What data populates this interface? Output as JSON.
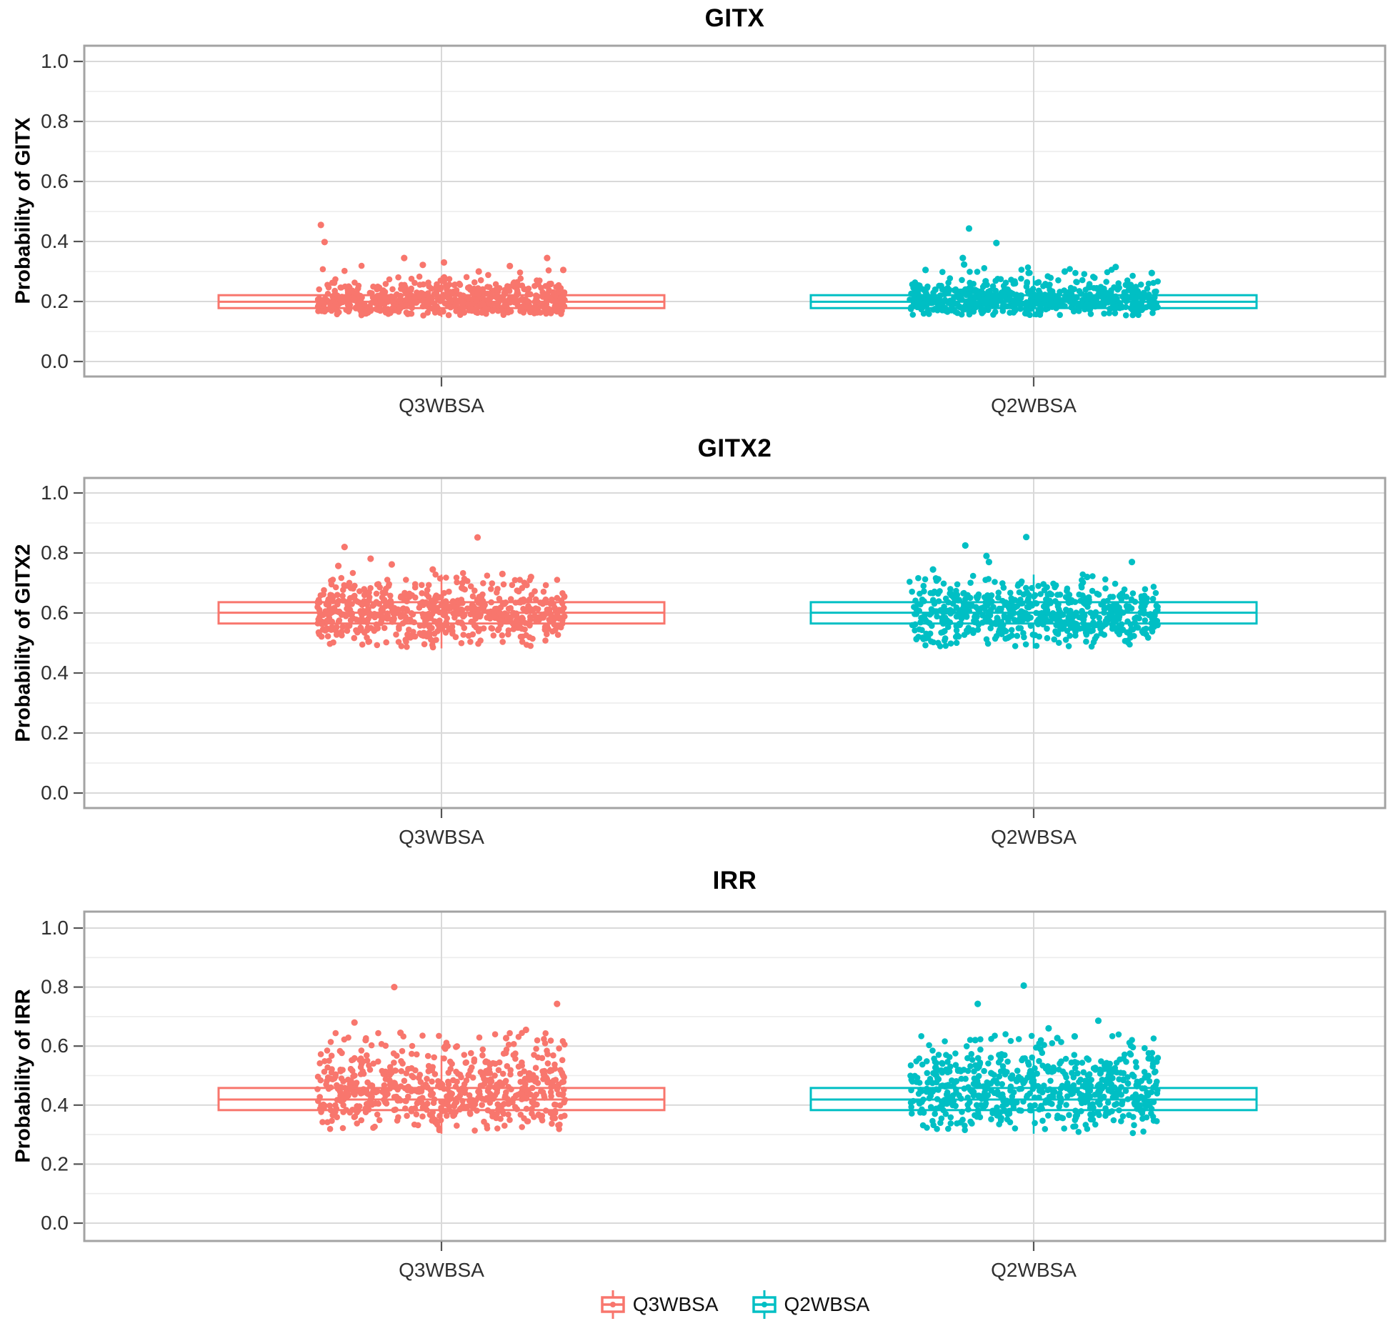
{
  "figure": {
    "panels": [
      {
        "title": "GITX",
        "ylabel": "Probability of GITX"
      },
      {
        "title": "GITX2",
        "ylabel": "Probability of GITX2"
      },
      {
        "title": "IRR",
        "ylabel": "Probability of IRR"
      }
    ],
    "legend": {
      "items": [
        {
          "label": "Q3WBSA",
          "color": "#F8766D"
        },
        {
          "label": "Q2WBSA",
          "color": "#00BFC4"
        }
      ]
    }
  },
  "chart_data": [
    {
      "type": "boxplot-jitter",
      "title": "GITX",
      "xlabel": "",
      "ylabel": "Probability of GITX",
      "categories": [
        "Q3WBSA",
        "Q2WBSA"
      ],
      "ylim": [
        -0.05,
        1.05
      ],
      "yticks": [
        0.0,
        0.2,
        0.4,
        0.6,
        0.8,
        1.0
      ],
      "grid": "major-and-minor-horizontal, major-vertical-at-categories",
      "legend_position": "bottom",
      "series": [
        {
          "name": "Q3WBSA",
          "color": "#F8766D",
          "box": {
            "q1": 0.178,
            "median": 0.199,
            "q3": 0.221,
            "whisker_low": 0.148,
            "whisker_high": 0.285
          },
          "jitter": {
            "n": 620,
            "core_min": 0.15,
            "core_max": 0.285,
            "tail_max": 0.34
          },
          "outliers": [
            [
              -0.97,
              0.455
            ],
            [
              -0.94,
              0.398
            ],
            [
              -0.3,
              0.345
            ],
            [
              0.85,
              0.345
            ],
            [
              0.02,
              0.33
            ],
            [
              -0.15,
              0.322
            ],
            [
              0.55,
              0.318
            ],
            [
              0.98,
              0.305
            ],
            [
              0.3,
              0.3
            ]
          ]
        },
        {
          "name": "Q2WBSA",
          "color": "#00BFC4",
          "box": {
            "q1": 0.178,
            "median": 0.199,
            "q3": 0.221,
            "whisker_low": 0.148,
            "whisker_high": 0.285
          },
          "jitter": {
            "n": 620,
            "core_min": 0.15,
            "core_max": 0.285,
            "tail_max": 0.33
          },
          "outliers": [
            [
              -0.52,
              0.443
            ],
            [
              -0.3,
              0.395
            ],
            [
              -0.57,
              0.345
            ],
            [
              -0.56,
              0.323
            ],
            [
              -0.87,
              0.305
            ],
            [
              0.66,
              0.315
            ],
            [
              0.25,
              0.3
            ],
            [
              0.95,
              0.295
            ]
          ]
        }
      ]
    },
    {
      "type": "boxplot-jitter",
      "title": "GITX2",
      "xlabel": "",
      "ylabel": "Probability of GITX2",
      "categories": [
        "Q3WBSA",
        "Q2WBSA"
      ],
      "ylim": [
        -0.05,
        1.05
      ],
      "yticks": [
        0.0,
        0.2,
        0.4,
        0.6,
        0.8,
        1.0
      ],
      "grid": "major-and-minor-horizontal, major-vertical-at-categories",
      "legend_position": "bottom",
      "series": [
        {
          "name": "Q3WBSA",
          "color": "#F8766D",
          "box": {
            "q1": 0.565,
            "median": 0.601,
            "q3": 0.636,
            "whisker_low": 0.482,
            "whisker_high": 0.728
          },
          "jitter": {
            "n": 620,
            "core_min": 0.483,
            "core_max": 0.723,
            "tail_max": 0.75
          },
          "outliers": [
            [
              0.29,
              0.852
            ],
            [
              -0.78,
              0.82
            ],
            [
              -0.57,
              0.781
            ],
            [
              -0.4,
              0.762
            ],
            [
              -0.83,
              0.757
            ],
            [
              -0.07,
              0.745
            ],
            [
              0.49,
              0.73
            ],
            [
              0.72,
              0.72
            ]
          ]
        },
        {
          "name": "Q2WBSA",
          "color": "#00BFC4",
          "box": {
            "q1": 0.565,
            "median": 0.601,
            "q3": 0.636,
            "whisker_low": 0.482,
            "whisker_high": 0.728
          },
          "jitter": {
            "n": 620,
            "core_min": 0.483,
            "core_max": 0.723,
            "tail_max": 0.75
          },
          "outliers": [
            [
              -0.06,
              0.853
            ],
            [
              -0.55,
              0.825
            ],
            [
              -0.38,
              0.79
            ],
            [
              -0.36,
              0.77
            ],
            [
              0.79,
              0.77
            ],
            [
              -0.81,
              0.745
            ],
            [
              0.43,
              0.72
            ]
          ]
        }
      ]
    },
    {
      "type": "boxplot-jitter",
      "title": "IRR",
      "xlabel": "",
      "ylabel": "Probability of IRR",
      "categories": [
        "Q3WBSA",
        "Q2WBSA"
      ],
      "ylim": [
        -0.05,
        1.05
      ],
      "yticks": [
        0.0,
        0.2,
        0.4,
        0.6,
        0.8,
        1.0
      ],
      "grid": "major-and-minor-horizontal, major-vertical-at-categories",
      "legend_position": "bottom",
      "series": [
        {
          "name": "Q3WBSA",
          "color": "#F8766D",
          "box": {
            "q1": 0.383,
            "median": 0.419,
            "q3": 0.458,
            "whisker_low": 0.303,
            "whisker_high": 0.568
          },
          "jitter": {
            "n": 620,
            "core_min": 0.303,
            "core_max": 0.615,
            "tail_max": 0.66
          },
          "outliers": [
            [
              -0.38,
              0.8
            ],
            [
              0.93,
              0.743
            ],
            [
              -0.7,
              0.68
            ],
            [
              0.68,
              0.655
            ],
            [
              -0.33,
              0.645
            ],
            [
              0.52,
              0.627
            ],
            [
              -0.61,
              0.62
            ]
          ]
        },
        {
          "name": "Q2WBSA",
          "color": "#00BFC4",
          "box": {
            "q1": 0.383,
            "median": 0.419,
            "q3": 0.458,
            "whisker_low": 0.303,
            "whisker_high": 0.568
          },
          "jitter": {
            "n": 620,
            "core_min": 0.303,
            "core_max": 0.615,
            "tail_max": 0.66
          },
          "outliers": [
            [
              -0.08,
              0.805
            ],
            [
              -0.45,
              0.743
            ],
            [
              0.52,
              0.686
            ],
            [
              0.12,
              0.66
            ],
            [
              0.33,
              0.633
            ],
            [
              0.19,
              0.627
            ],
            [
              -0.47,
              0.62
            ]
          ]
        }
      ]
    }
  ]
}
